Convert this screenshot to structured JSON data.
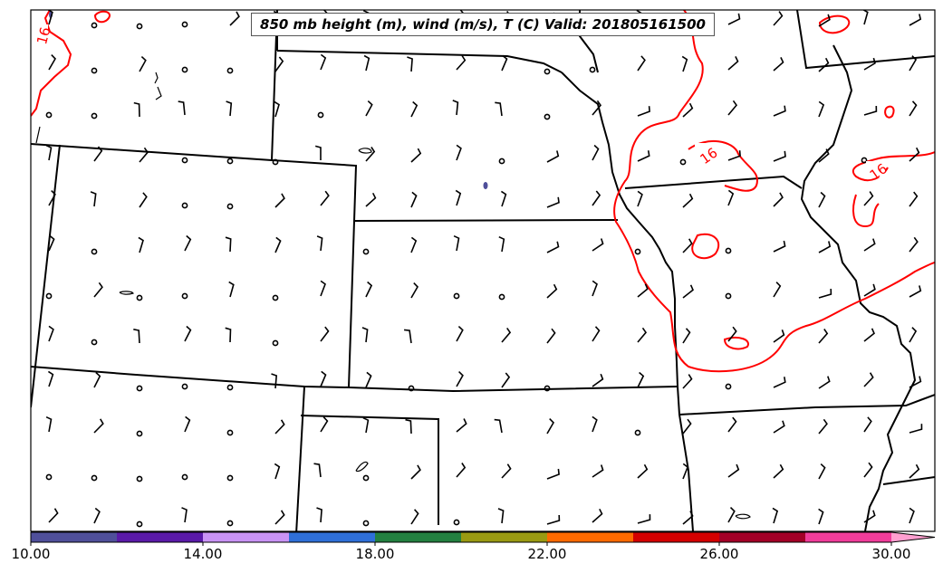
{
  "title": "850 mb height (m), wind (m/s), T (C) Valid: 201805161500",
  "contour_labels": [
    "16",
    "16",
    "16"
  ],
  "colorbar": {
    "tick_labels": [
      "10.00",
      "14.00",
      "18.00",
      "22.00",
      "26.00",
      "30.00"
    ],
    "colors": [
      "#4f4f9a",
      "#5a1aa8",
      "#c993f5",
      "#2f6fd8",
      "#238040",
      "#9a9a12",
      "#ff6a00",
      "#d40000",
      "#a30027",
      "#f03c9a",
      "#ff9fd0"
    ]
  },
  "colors": {
    "temperature_contour": "#ff0000",
    "boundary": "#000000",
    "wind": "#000000"
  }
}
